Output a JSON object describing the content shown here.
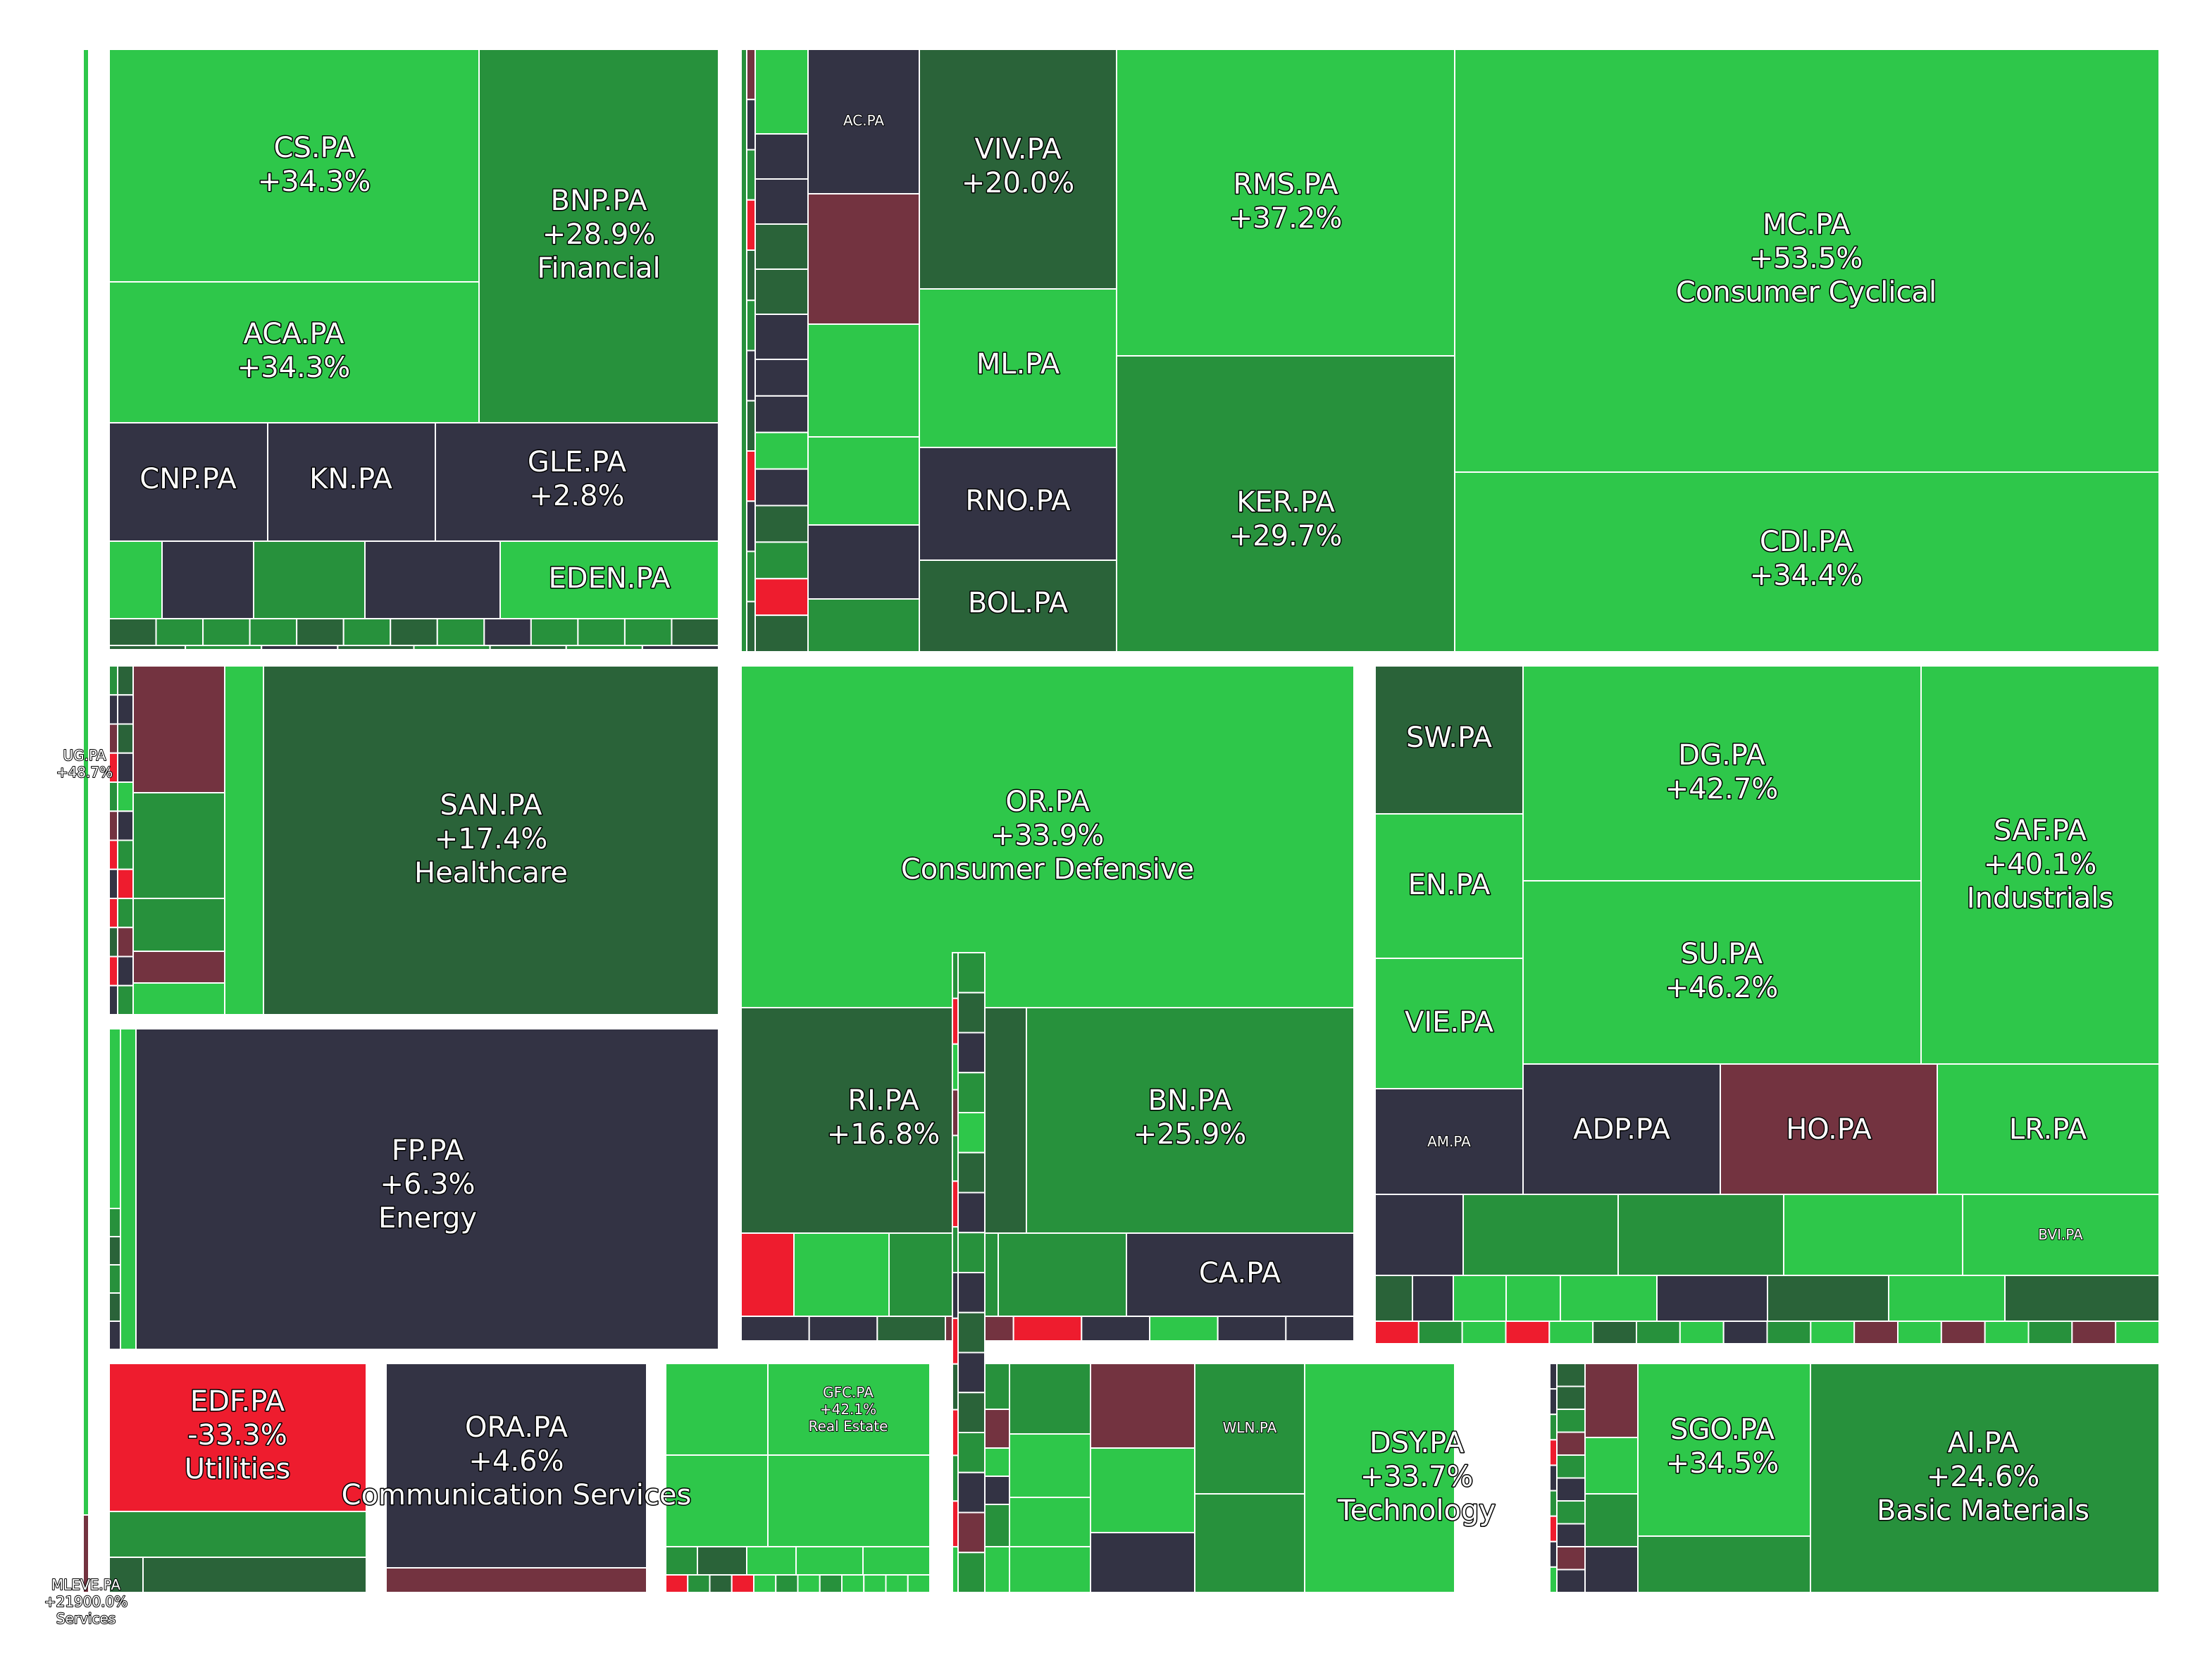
{
  "chart_data": {
    "type": "treemap",
    "colors": {
      "strong_up": "#2ec74a",
      "mid_up": "#27913c",
      "small_up": "#2a6339",
      "flat": "#333344",
      "small_down": "#733340",
      "strong_down": "#ee1c2e"
    },
    "sectors": [
      {
        "name": "Financial",
        "stocks": [
          {
            "ticker": "CS.PA",
            "change": "+34.3%"
          },
          {
            "ticker": "BNP.PA",
            "change": "+28.9%",
            "sector_label": "Financial"
          },
          {
            "ticker": "ACA.PA",
            "change": "+34.3%"
          },
          {
            "ticker": "CNP.PA"
          },
          {
            "ticker": "KN.PA"
          },
          {
            "ticker": "GLE.PA",
            "change": "+2.8%"
          },
          {
            "ticker": "EDEN.PA"
          }
        ]
      },
      {
        "name": "Consumer Cyclical",
        "stocks": [
          {
            "ticker": "AC.PA"
          },
          {
            "ticker": "VIV.PA",
            "change": "+20.0%"
          },
          {
            "ticker": "RMS.PA",
            "change": "+37.2%"
          },
          {
            "ticker": "MC.PA",
            "change": "+53.5%",
            "sector_label": "Consumer Cyclical"
          },
          {
            "ticker": "ML.PA"
          },
          {
            "ticker": "RNO.PA"
          },
          {
            "ticker": "BOL.PA"
          },
          {
            "ticker": "KER.PA",
            "change": "+29.7%"
          },
          {
            "ticker": "CDI.PA",
            "change": "+34.4%"
          }
        ]
      },
      {
        "name": "Healthcare",
        "stocks": [
          {
            "ticker": "SAN.PA",
            "change": "+17.4%",
            "sector_label": "Healthcare"
          }
        ]
      },
      {
        "name": "Energy",
        "stocks": [
          {
            "ticker": "FP.PA",
            "change": "+6.3%",
            "sector_label": "Energy"
          }
        ]
      },
      {
        "name": "Consumer Defensive",
        "stocks": [
          {
            "ticker": "OR.PA",
            "change": "+33.9%",
            "sector_label": "Consumer Defensive"
          },
          {
            "ticker": "RI.PA",
            "change": "+16.8%"
          },
          {
            "ticker": "BN.PA",
            "change": "+25.9%"
          },
          {
            "ticker": "CA.PA"
          }
        ]
      },
      {
        "name": "Industrials",
        "stocks": [
          {
            "ticker": "SW.PA"
          },
          {
            "ticker": "DG.PA",
            "change": "+42.7%"
          },
          {
            "ticker": "SAF.PA",
            "change": "+40.1%",
            "sector_label": "Industrials"
          },
          {
            "ticker": "EN.PA"
          },
          {
            "ticker": "SU.PA",
            "change": "+46.2%"
          },
          {
            "ticker": "VIE.PA"
          },
          {
            "ticker": "AM.PA"
          },
          {
            "ticker": "ADP.PA"
          },
          {
            "ticker": "HO.PA"
          },
          {
            "ticker": "LR.PA"
          },
          {
            "ticker": "BVI.PA"
          }
        ]
      },
      {
        "name": "Utilities",
        "stocks": [
          {
            "ticker": "EDF.PA",
            "change": "-33.3%",
            "sector_label": "Utilities"
          }
        ]
      },
      {
        "name": "Communication Services",
        "stocks": [
          {
            "ticker": "ORA.PA",
            "change": "+4.6%",
            "sector_label": "Communication Services"
          }
        ]
      },
      {
        "name": "Real Estate",
        "stocks": [
          {
            "ticker": "GFC.PA",
            "change": "+42.1%",
            "sector_label": "Real Estate"
          }
        ]
      },
      {
        "name": "Technology",
        "stocks": [
          {
            "ticker": "WLN.PA"
          },
          {
            "ticker": "DSY.PA",
            "change": "+33.7%",
            "sector_label": "Technology"
          }
        ]
      },
      {
        "name": "Basic Materials",
        "stocks": [
          {
            "ticker": "SGO.PA",
            "change": "+34.5%"
          },
          {
            "ticker": "AI.PA",
            "change": "+24.6%",
            "sector_label": "Basic Materials"
          }
        ]
      },
      {
        "name": "Services",
        "stocks": [
          {
            "ticker": "UG.PA",
            "change": "+48.7%"
          },
          {
            "ticker": "MLEVE.PA",
            "change": "+21900.0%",
            "sector_label": "Services"
          }
        ]
      }
    ]
  }
}
